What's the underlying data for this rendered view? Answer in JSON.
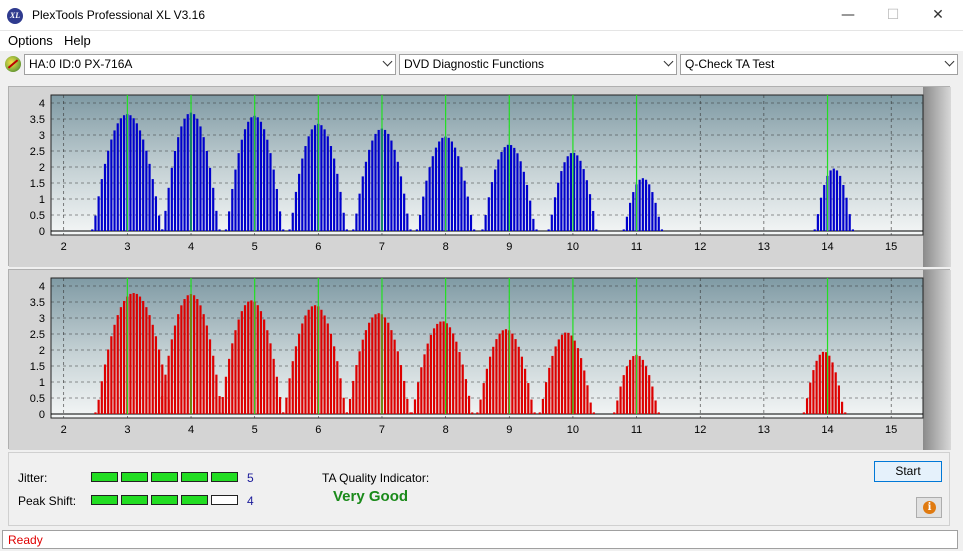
{
  "window": {
    "title": "PlexTools Professional XL V3.16",
    "icon": "xl-logo-icon",
    "minimize": "—",
    "maximize": "☐",
    "close": "✕"
  },
  "menu": {
    "items": [
      "Options",
      "Help"
    ]
  },
  "toolbar": {
    "drive": "HA:0 ID:0  PX-716A",
    "function": "DVD Diagnostic Functions",
    "test": "Q-Check TA Test"
  },
  "chart_data": [
    {
      "type": "bar",
      "name": "",
      "color": "#0000cc",
      "x_ticks": [
        2,
        3,
        4,
        5,
        6,
        7,
        8,
        9,
        10,
        11,
        12,
        13,
        14,
        15
      ],
      "y_ticks": [
        "4",
        "3.5",
        "3",
        "2.5",
        "2",
        "1.5",
        "1",
        "0.5",
        "0"
      ],
      "ylim": [
        0,
        4
      ],
      "xlim": [
        1.8,
        15.5
      ],
      "marker_lines": [
        3,
        4,
        5,
        6,
        7,
        8,
        9,
        10,
        11,
        14
      ],
      "peaks": [
        {
          "center": 3.0,
          "width": 0.55,
          "height": 3.65
        },
        {
          "center": 4.0,
          "width": 0.45,
          "height": 3.7
        },
        {
          "center": 5.0,
          "width": 0.45,
          "height": 3.6
        },
        {
          "center": 6.0,
          "width": 0.45,
          "height": 3.35
        },
        {
          "center": 7.0,
          "width": 0.45,
          "height": 3.2
        },
        {
          "center": 8.0,
          "width": 0.45,
          "height": 2.95
        },
        {
          "center": 9.0,
          "width": 0.42,
          "height": 2.7
        },
        {
          "center": 10.0,
          "width": 0.38,
          "height": 2.45
        },
        {
          "center": 11.1,
          "width": 0.3,
          "height": 1.65
        },
        {
          "center": 14.1,
          "width": 0.3,
          "height": 1.95
        }
      ]
    },
    {
      "type": "bar",
      "name": "",
      "color": "#dd0000",
      "x_ticks": [
        2,
        3,
        4,
        5,
        6,
        7,
        8,
        9,
        10,
        11,
        12,
        13,
        14,
        15
      ],
      "y_ticks": [
        "4",
        "3.5",
        "3",
        "2.5",
        "2",
        "1.5",
        "1",
        "0.5",
        "0"
      ],
      "ylim": [
        0,
        4
      ],
      "xlim": [
        1.8,
        15.5
      ],
      "marker_lines": [
        3,
        4,
        5,
        6,
        7,
        8,
        9,
        10,
        11,
        14
      ],
      "peaks": [
        {
          "center": 3.1,
          "width": 0.6,
          "height": 3.78
        },
        {
          "center": 4.0,
          "width": 0.5,
          "height": 3.75
        },
        {
          "center": 4.95,
          "width": 0.5,
          "height": 3.55
        },
        {
          "center": 5.95,
          "width": 0.5,
          "height": 3.4
        },
        {
          "center": 6.95,
          "width": 0.5,
          "height": 3.15
        },
        {
          "center": 7.95,
          "width": 0.48,
          "height": 2.9
        },
        {
          "center": 8.95,
          "width": 0.45,
          "height": 2.65
        },
        {
          "center": 9.9,
          "width": 0.42,
          "height": 2.55
        },
        {
          "center": 11.0,
          "width": 0.35,
          "height": 1.85
        },
        {
          "center": 13.95,
          "width": 0.32,
          "height": 1.95
        }
      ]
    }
  ],
  "metrics": {
    "jitter": {
      "label": "Jitter:",
      "value": "5",
      "level": 5,
      "max": 5
    },
    "peak_shift": {
      "label": "Peak Shift:",
      "value": "4",
      "level": 4,
      "max": 5
    }
  },
  "ta_quality": {
    "label": "TA Quality Indicator:",
    "value": "Very Good"
  },
  "buttons": {
    "start": "Start",
    "info_icon": "info-icon"
  },
  "status": {
    "text": "Ready"
  }
}
